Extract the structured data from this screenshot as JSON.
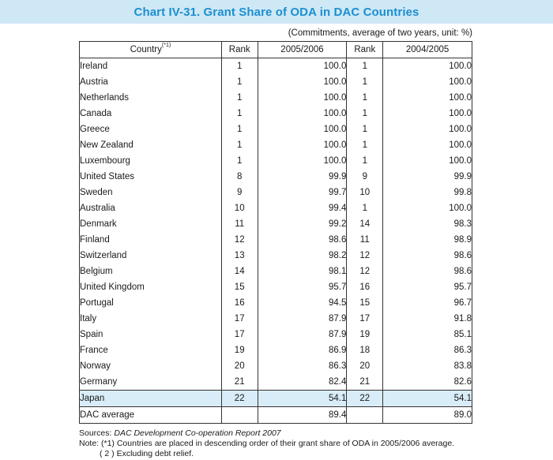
{
  "title": "Chart IV-31. Grant Share of ODA in DAC Countries",
  "units_note": "(Commitments, average of two years, unit: %)",
  "headers": {
    "country": "Country",
    "country_sup": "(*1)",
    "rank1": "Rank",
    "period1": "2005/2006",
    "rank2": "Rank",
    "period2": "2004/2005"
  },
  "rows": [
    {
      "country": "Ireland",
      "rank1": "1",
      "val1": "100.0",
      "rank2": "1",
      "val2": "100.0"
    },
    {
      "country": "Austria",
      "rank1": "1",
      "val1": "100.0",
      "rank2": "1",
      "val2": "100.0"
    },
    {
      "country": "Netherlands",
      "rank1": "1",
      "val1": "100.0",
      "rank2": "1",
      "val2": "100.0"
    },
    {
      "country": "Canada",
      "rank1": "1",
      "val1": "100.0",
      "rank2": "1",
      "val2": "100.0"
    },
    {
      "country": "Greece",
      "rank1": "1",
      "val1": "100.0",
      "rank2": "1",
      "val2": "100.0"
    },
    {
      "country": "New Zealand",
      "rank1": "1",
      "val1": "100.0",
      "rank2": "1",
      "val2": "100.0"
    },
    {
      "country": "Luxembourg",
      "rank1": "1",
      "val1": "100.0",
      "rank2": "1",
      "val2": "100.0"
    },
    {
      "country": "United States",
      "rank1": "8",
      "val1": "99.9",
      "rank2": "9",
      "val2": "99.9"
    },
    {
      "country": "Sweden",
      "rank1": "9",
      "val1": "99.7",
      "rank2": "10",
      "val2": "99.8"
    },
    {
      "country": "Australia",
      "rank1": "10",
      "val1": "99.4",
      "rank2": "1",
      "val2": "100.0"
    },
    {
      "country": "Denmark",
      "rank1": "11",
      "val1": "99.2",
      "rank2": "14",
      "val2": "98.3"
    },
    {
      "country": "Finland",
      "rank1": "12",
      "val1": "98.6",
      "rank2": "11",
      "val2": "98.9"
    },
    {
      "country": "Switzerland",
      "rank1": "13",
      "val1": "98.2",
      "rank2": "12",
      "val2": "98.6"
    },
    {
      "country": "Belgium",
      "rank1": "14",
      "val1": "98.1",
      "rank2": "12",
      "val2": "98.6"
    },
    {
      "country": "United Kingdom",
      "rank1": "15",
      "val1": "95.7",
      "rank2": "16",
      "val2": "95.7"
    },
    {
      "country": "Portugal",
      "rank1": "16",
      "val1": "94.5",
      "rank2": "15",
      "val2": "96.7"
    },
    {
      "country": "Italy",
      "rank1": "17",
      "val1": "87.9",
      "rank2": "17",
      "val2": "91.8"
    },
    {
      "country": "Spain",
      "rank1": "17",
      "val1": "87.9",
      "rank2": "19",
      "val2": "85.1"
    },
    {
      "country": "France",
      "rank1": "19",
      "val1": "86.9",
      "rank2": "18",
      "val2": "86.3"
    },
    {
      "country": "Norway",
      "rank1": "20",
      "val1": "86.3",
      "rank2": "20",
      "val2": "83.8"
    },
    {
      "country": "Germany",
      "rank1": "21",
      "val1": "82.4",
      "rank2": "21",
      "val2": "82.6"
    }
  ],
  "japan": {
    "country": "Japan",
    "rank1": "22",
    "val1": "54.1",
    "rank2": "22",
    "val2": "54.1"
  },
  "dac_average": {
    "country": "DAC average",
    "rank1": "",
    "val1": "89.4",
    "rank2": "",
    "val2": "89.0"
  },
  "notes": {
    "source_prefix": "Sources: ",
    "source_title": "DAC Development Co-operation Report 2007",
    "note1": "Note: (*1) Countries are placed in descending order of their grant share of ODA in 2005/2006 average.",
    "note2": "( 2 ) Excluding debt relief."
  },
  "colors": {
    "title_bg": "#cfe8f6",
    "title_text": "#1b8fcf",
    "highlight_bg": "#d9edf8"
  }
}
